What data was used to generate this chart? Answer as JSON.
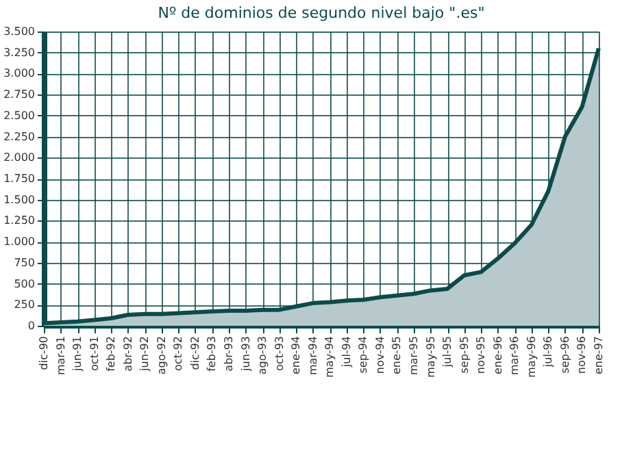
{
  "chart_data": {
    "type": "area",
    "title": "Nº de dominios de segundo nivel bajo \".es\"",
    "categories": [
      "dic-90",
      "mar-91",
      "jun-91",
      "oct-91",
      "feb-92",
      "abr-92",
      "jun-92",
      "ago-92",
      "oct-92",
      "dic-92",
      "feb-93",
      "abr-93",
      "jun-93",
      "ago-93",
      "oct-93",
      "ene-94",
      "mar-94",
      "may-94",
      "jul-94",
      "sep-94",
      "nov-94",
      "ene-95",
      "mar-95",
      "may-95",
      "jul-95",
      "sep-95",
      "nov-95",
      "ene-96",
      "mar-96",
      "may-96",
      "jul-96",
      "sep-96",
      "nov-96",
      "ene-97"
    ],
    "series": [
      {
        "color": "#b7c9cc",
        "values": [
          30,
          40,
          50,
          70,
          90,
          130,
          140,
          140,
          150,
          160,
          170,
          180,
          180,
          190,
          190,
          230,
          270,
          280,
          300,
          310,
          340,
          360,
          380,
          420,
          440,
          600,
          640,
          800,
          980,
          1200,
          1600,
          2250,
          2600,
          3300
        ]
      }
    ],
    "ylim": [
      0,
      3500
    ],
    "yticks": [
      0,
      250,
      500,
      750,
      {
        "value": 1000,
        "label": "1.000"
      },
      {
        "value": 1250,
        "label": "1.250"
      },
      {
        "value": 1500,
        "label": "1.500"
      },
      {
        "value": 1750,
        "label": "1.750"
      },
      {
        "value": 2000,
        "label": "2.000"
      },
      {
        "value": 2250,
        "label": "2.250"
      },
      {
        "value": 2500,
        "label": "2.500"
      },
      {
        "value": 2750,
        "label": "2.750"
      },
      {
        "value": 3000,
        "label": "3.000"
      },
      {
        "value": 3250,
        "label": "3.250"
      },
      {
        "value": 3500,
        "label": "3.500"
      }
    ],
    "grid": true,
    "line_style": "solid",
    "marker": "none"
  }
}
